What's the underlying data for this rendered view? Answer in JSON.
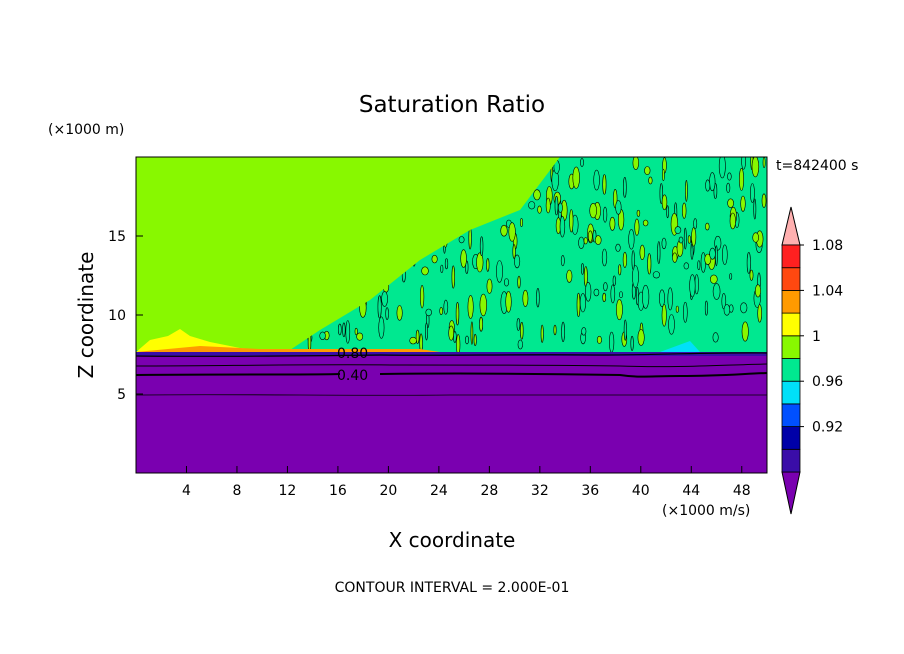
{
  "chart_data": {
    "type": "heatmap",
    "title": "Saturation Ratio",
    "xlabel": "X coordinate",
    "ylabel": "Z coordinate",
    "x_unit": "(×1000 m/s)",
    "y_unit": "(×1000 m)",
    "time_label": "t=842400 s",
    "footer": "CONTOUR INTERVAL = 2.000E-01",
    "xlim": [
      0,
      50
    ],
    "ylim": [
      0,
      20
    ],
    "x_ticks": [
      4,
      8,
      12,
      16,
      20,
      24,
      28,
      32,
      36,
      40,
      44,
      48
    ],
    "y_ticks": [
      5,
      10,
      15
    ],
    "contour_labels": [
      {
        "text": "0.80",
        "x": 17.6,
        "z": 7.5
      },
      {
        "text": "0.40",
        "x": 17.6,
        "z": 6.2
      }
    ],
    "regions": [
      {
        "name": "upper",
        "z_range": [
          7.8,
          19.8
        ],
        "values": [
          0.98,
          1.0
        ],
        "description": "mix of 1-1.02 and 0.98-1"
      },
      {
        "name": "boundary",
        "z_range": [
          7.6,
          8.2
        ],
        "values": [
          1.04,
          1.06
        ],
        "x_range": [
          0,
          12
        ]
      },
      {
        "name": "lower",
        "z_range": [
          0,
          7.8
        ],
        "values": [
          0.0,
          0.9
        ]
      }
    ],
    "colorbar": {
      "levels": [
        0.92,
        0.96,
        1,
        1.04,
        1.08
      ],
      "bands": [
        {
          "label": "below",
          "color": "#7a00b0"
        },
        {
          "label": "0.90-0.92",
          "color": "#3a0da8"
        },
        {
          "label": "0.92-0.94",
          "color": "#0000a8"
        },
        {
          "label": "0.94-0.96",
          "color": "#0050ff"
        },
        {
          "label": "0.96-0.98",
          "color": "#00e0f8"
        },
        {
          "label": "0.98-1.00",
          "color": "#00e890"
        },
        {
          "label": "1.00-1.02",
          "color": "#88f800"
        },
        {
          "label": "1.02-1.04",
          "color": "#ffff00"
        },
        {
          "label": "1.04-1.06",
          "color": "#ff9a00"
        },
        {
          "label": "1.06-1.08",
          "color": "#ff4810"
        },
        {
          "label": "1.08-1.10",
          "color": "#ff2020"
        },
        {
          "label": "above",
          "color": "#ffb0b0"
        }
      ]
    }
  }
}
